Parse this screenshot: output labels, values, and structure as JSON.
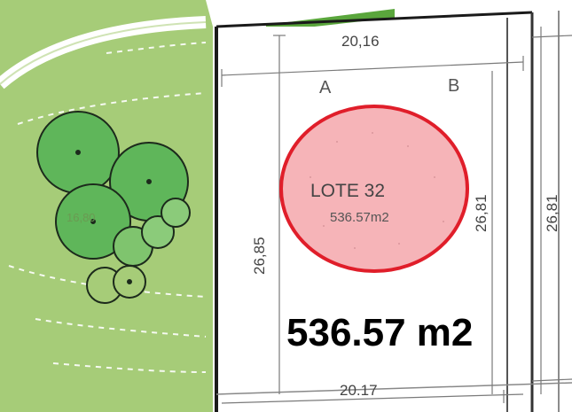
{
  "plan": {
    "lot": {
      "name": "LOTE 32",
      "area": "536.57m2",
      "highlight_color": "#f6b4b8",
      "highlight_border": "#e01e2a"
    },
    "corners": {
      "a": "A",
      "b": "B"
    },
    "dimensions": {
      "top": "20,16",
      "bottom": "20.17",
      "left": "26,85",
      "right_inner": "26,81",
      "right_outer": "26,81"
    },
    "green_area_label": "16,80",
    "area_callout": "536.57 m2",
    "colors": {
      "green_area": "#a6cc78",
      "tree_fill": "#5fb65a",
      "lot_border": "#1a1a1a"
    }
  }
}
